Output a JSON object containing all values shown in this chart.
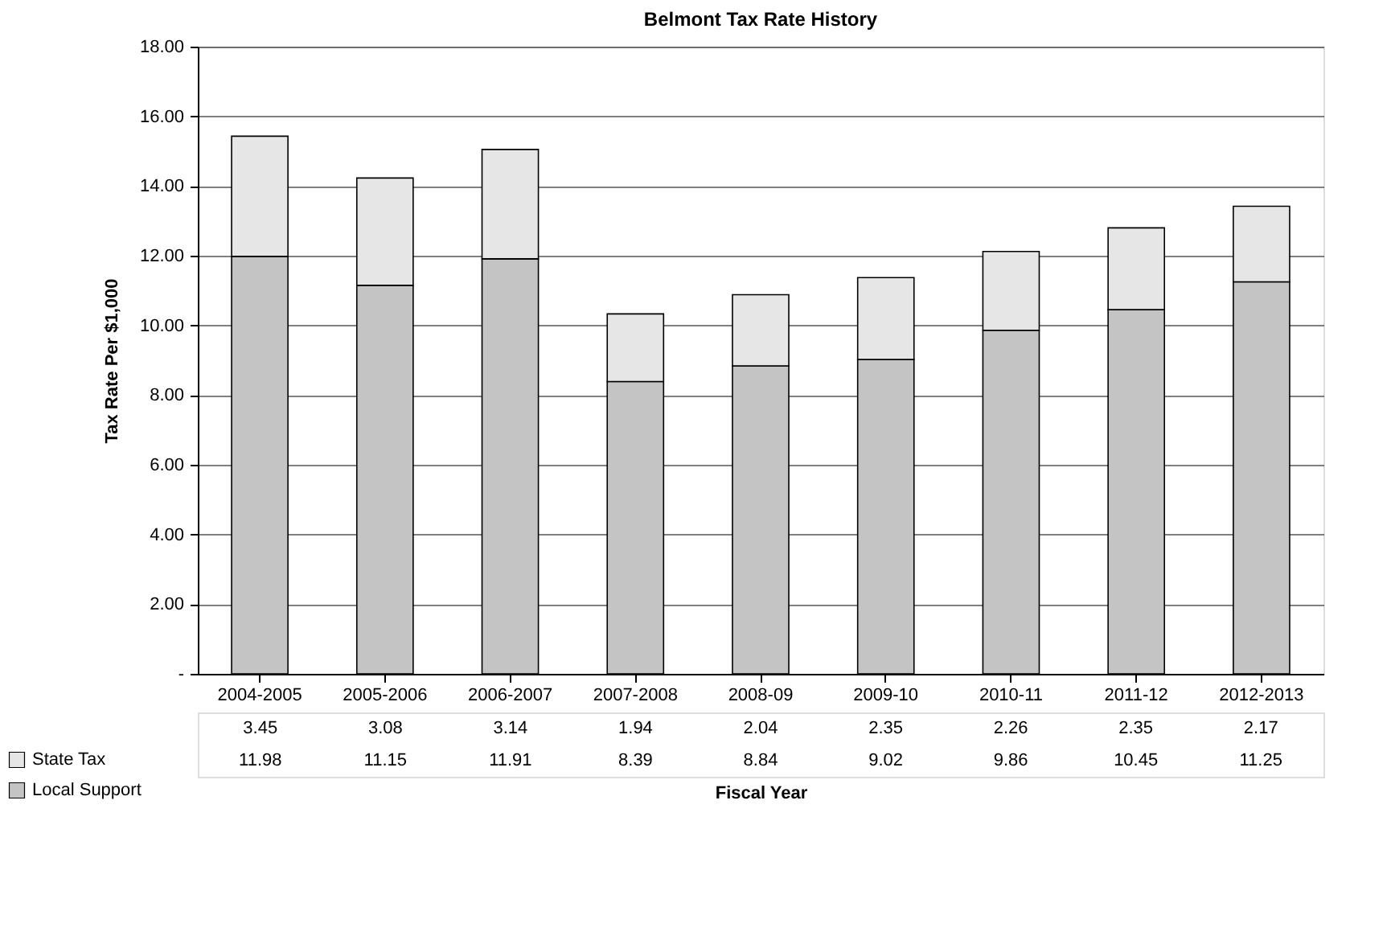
{
  "chart_data": {
    "type": "bar",
    "title": "Belmont Tax Rate History",
    "xlabel": "Fiscal Year",
    "ylabel": "Tax Rate Per $1,000",
    "categories": [
      "2004-2005",
      "2005-2006",
      "2006-2007",
      "2007-2008",
      "2008-09",
      "2009-10",
      "2010-11",
      "2011-12",
      "2012-2013"
    ],
    "stacked": true,
    "data_labels": true,
    "grid": "y",
    "legend": "bottom",
    "ylim": [
      0,
      18
    ],
    "yticks": [
      {
        "value": 0,
        "label": "-"
      },
      {
        "value": 2,
        "label": "2.00"
      },
      {
        "value": 4,
        "label": "4.00"
      },
      {
        "value": 6,
        "label": "6.00"
      },
      {
        "value": 8,
        "label": "8.00"
      },
      {
        "value": 10,
        "label": "10.00"
      },
      {
        "value": 12,
        "label": "12.00"
      },
      {
        "value": 14,
        "label": "14.00"
      },
      {
        "value": 16,
        "label": "16.00"
      },
      {
        "value": 18,
        "label": "18.00"
      }
    ],
    "series": [
      {
        "name": "Local Support",
        "color": "#c4c4c4",
        "values": [
          11.98,
          11.15,
          11.91,
          8.39,
          8.84,
          9.02,
          9.86,
          10.45,
          11.25
        ]
      },
      {
        "name": "State Tax",
        "color": "#e6e6e6",
        "values": [
          3.45,
          3.08,
          3.14,
          1.94,
          2.04,
          2.35,
          2.26,
          2.35,
          2.17
        ]
      }
    ]
  }
}
